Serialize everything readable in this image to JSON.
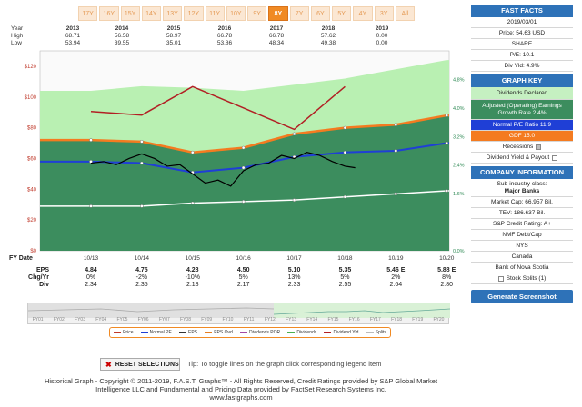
{
  "range_tabs": [
    "17Y",
    "16Y",
    "15Y",
    "14Y",
    "13Y",
    "12Y",
    "11Y",
    "10Y",
    "9Y",
    "8Y",
    "7Y",
    "6Y",
    "5Y",
    "4Y",
    "3Y",
    "All"
  ],
  "active_tab": "8Y",
  "hilo": {
    "labels": {
      "year": "Year",
      "high": "High",
      "low": "Low"
    },
    "years": [
      "2013",
      "2014",
      "2015",
      "2016",
      "2017",
      "2018",
      "2019"
    ],
    "high": [
      "68.71",
      "56.58",
      "58.97",
      "66.78",
      "66.78",
      "57.62",
      "0.00"
    ],
    "low": [
      "53.94",
      "39.55",
      "35.01",
      "53.86",
      "48.34",
      "49.38",
      "0.00"
    ]
  },
  "fy_label": "FY Date",
  "rows": {
    "eps_label": "EPS",
    "chg_label": "Chg/Yr",
    "div_label": "Div",
    "dates": [
      "10/13",
      "10/14",
      "10/15",
      "10/16",
      "10/17",
      "10/18",
      "10/19",
      "10/20"
    ],
    "eps": [
      "4.84",
      "4.75",
      "4.28",
      "4.50",
      "5.10",
      "5.35",
      "5.46 E",
      "5.88 E"
    ],
    "chg": [
      "0%",
      "-2%",
      "-10%",
      "5%",
      "13%",
      "5%",
      "2%",
      "8%"
    ],
    "div": [
      "2.34",
      "2.35",
      "2.18",
      "2.17",
      "2.33",
      "2.55",
      "2.64",
      "2.80"
    ]
  },
  "mini_years": [
    "FY01",
    "FY02",
    "FY03",
    "FY04",
    "FY05",
    "FY06",
    "FY07",
    "FY08",
    "FY09",
    "FY10",
    "FY11",
    "FY12",
    "FY13",
    "FY14",
    "FY15",
    "FY16",
    "FY17",
    "FY18",
    "FY19",
    "FY20"
  ],
  "legend": [
    "Price",
    "Normal PE",
    "EPS",
    "EPS Ovd",
    "Dividends POR",
    "Dividends",
    "Dividend Yld",
    "Splits"
  ],
  "reset_label": "RESET SELECTIONS",
  "tip": "Tip: To toggle lines on the graph click corresponding legend item",
  "footer": [
    "Historical Graph - Copyright © 2011-2019, F.A.S.T. Graphs™ - All Rights Reserved, Credit Ratings provided by S&P Global Market",
    "Intelligence LLC and Fundamental and Pricing Data provided by FactSet Research Systems Inc.",
    "www.fastgraphs.com"
  ],
  "panel": {
    "facts_title": "FAST FACTS",
    "date": "2019/03/01",
    "price": "Price: 54.63 USD",
    "share": "SHARE",
    "pe": "P/E: 10.1",
    "div_yld": "Div Yld: 4.9%",
    "key_title": "GRAPH KEY",
    "key_dividends": "Dividends Declared",
    "key_growth": "Adjusted (Operating) Earnings Growth Rate 2.4%",
    "key_normal": "Normal P/E Ratio 11.9",
    "key_gdf": "GDF 15.0",
    "key_recessions": "Recessions",
    "key_yield": "Dividend Yield & Payout",
    "info_title": "COMPANY INFORMATION",
    "subind": "Sub-industry class:",
    "subind_val": "Major Banks",
    "mcap": "Market Cap: 66.957 Bil.",
    "tev": "TEV: 186.637 Bil.",
    "rating": "S&P Credit Rating: A+",
    "debt": "NMF Debt/Cap",
    "exch": "NYS",
    "country": "Canada",
    "name": "Bank of Nova Scotia",
    "splits": "Stock Splits (1)",
    "gen": "Generate Screenshot"
  },
  "colors": {
    "orange": "#f08a24",
    "blue": "#2e72b8",
    "green_fill": "#9fe39a",
    "dark_green": "#2f8a55",
    "gdf": "#f47b20",
    "normal_pe": "#1f3fd6",
    "yield": "#b21f24"
  },
  "chart_data": {
    "type": "line",
    "x_ticks": [
      "10/13",
      "10/14",
      "10/15",
      "10/16",
      "10/17",
      "10/18",
      "10/19",
      "10/20"
    ],
    "y_left_ticks": [
      "$0",
      "$20",
      "$40",
      "$60",
      "$80",
      "$100",
      "$120"
    ],
    "y_right_ticks": [
      "0.0%",
      "1.6%",
      "2.4%",
      "3.2%",
      "4.0%",
      "4.8%"
    ],
    "ylim": [
      0,
      130
    ],
    "series": [
      {
        "name": "Dividends",
        "x": [
          0,
          1,
          2,
          3,
          4,
          5,
          6,
          7
        ],
        "values": [
          104,
          107,
          106,
          104,
          108,
          112,
          118,
          124
        ]
      },
      {
        "name": "GDF 15.0",
        "x": [
          0,
          1,
          2,
          3,
          4,
          5,
          6,
          7
        ],
        "values": [
          72,
          71,
          64,
          67,
          76,
          80,
          82,
          88
        ]
      },
      {
        "name": "Normal P/E Ratio 11.9",
        "x": [
          0,
          1,
          2,
          3,
          4,
          5,
          6,
          7
        ],
        "values": [
          58,
          57,
          51,
          54,
          61,
          64,
          65,
          70
        ]
      },
      {
        "name": "Dividends POR",
        "x": [
          0,
          1,
          2,
          3,
          4,
          5,
          6,
          7
        ],
        "values": [
          29,
          29,
          31,
          32,
          33,
          35,
          37,
          39
        ]
      },
      {
        "name": "Dividend Yld",
        "x": [
          0,
          1,
          2,
          3,
          4,
          5
        ],
        "values": [
          3.9,
          3.8,
          4.6,
          4.0,
          3.4,
          4.6
        ]
      },
      {
        "name": "Price",
        "x": [
          0,
          0.25,
          0.5,
          0.75,
          1,
          1.25,
          1.5,
          1.75,
          2,
          2.25,
          2.5,
          2.75,
          3,
          3.25,
          3.5,
          3.75,
          4,
          4.25,
          4.5,
          4.75,
          5,
          5.2
        ],
        "values": [
          57,
          58,
          56,
          60,
          63,
          60,
          55,
          56,
          50,
          44,
          46,
          42,
          52,
          56,
          57,
          62,
          60,
          64,
          62,
          58,
          55,
          54
        ]
      }
    ]
  }
}
